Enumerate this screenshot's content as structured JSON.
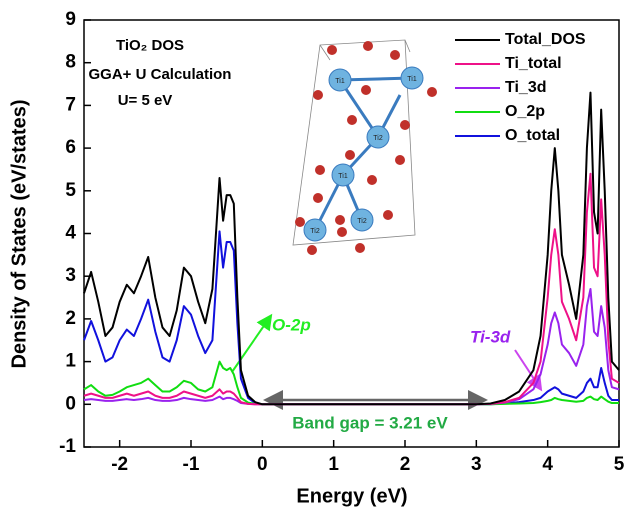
{
  "chart_data": {
    "type": "line",
    "xlabel": "Energy (eV)",
    "ylabel": "Density of States (eV/states)",
    "annotations": [
      "TiO₂ DOS",
      "GGA+ U Calculation",
      "U= 5 eV",
      "O-2p",
      "Ti-3d",
      "Band gap = 3.21 eV"
    ],
    "structure_labels": [
      "Ti1",
      "Ti1",
      "Ti1",
      "Ti2",
      "Ti2",
      "Ti2"
    ],
    "xlim": [
      -2.5,
      5
    ],
    "xticks": [
      -2,
      -1,
      0,
      1,
      2,
      3,
      4,
      5
    ],
    "ylim": [
      -1,
      9
    ],
    "yticks": [
      -1,
      0,
      1,
      2,
      3,
      4,
      5,
      6,
      7,
      8,
      9
    ],
    "legend": "upper right",
    "x": [
      -2.5,
      -2.4,
      -2.3,
      -2.2,
      -2.1,
      -2.0,
      -1.9,
      -1.8,
      -1.7,
      -1.6,
      -1.5,
      -1.4,
      -1.3,
      -1.2,
      -1.1,
      -1.0,
      -0.9,
      -0.8,
      -0.7,
      -0.6,
      -0.55,
      -0.5,
      -0.45,
      -0.4,
      -0.35,
      -0.3,
      -0.2,
      -0.1,
      0,
      1,
      2,
      3,
      3.2,
      3.4,
      3.6,
      3.8,
      3.9,
      4.0,
      4.05,
      4.1,
      4.15,
      4.2,
      4.3,
      4.4,
      4.5,
      4.55,
      4.6,
      4.65,
      4.7,
      4.75,
      4.8,
      4.85,
      4.9,
      5.0
    ],
    "series": [
      {
        "name": "Total_DOS",
        "color": "#000000",
        "values": [
          2.6,
          3.1,
          2.4,
          1.6,
          1.8,
          2.4,
          2.8,
          2.6,
          3.0,
          3.45,
          2.5,
          1.8,
          1.6,
          2.2,
          3.2,
          3.0,
          2.4,
          1.9,
          2.7,
          5.3,
          4.3,
          4.9,
          4.9,
          4.7,
          2.5,
          0.8,
          0.2,
          0.05,
          0,
          0,
          0,
          0,
          0.02,
          0.1,
          0.3,
          0.8,
          1.6,
          3.5,
          5.0,
          6.0,
          5.0,
          3.5,
          2.8,
          2.0,
          3.5,
          6.0,
          7.3,
          4.5,
          4.0,
          6.9,
          5.0,
          2.5,
          1.0,
          0.8
        ]
      },
      {
        "name": "Ti_total",
        "color": "#ee1188",
        "values": [
          0.2,
          0.25,
          0.2,
          0.15,
          0.15,
          0.2,
          0.25,
          0.2,
          0.25,
          0.3,
          0.2,
          0.15,
          0.15,
          0.2,
          0.3,
          0.25,
          0.2,
          0.15,
          0.2,
          0.35,
          0.25,
          0.3,
          0.3,
          0.25,
          0.15,
          0.05,
          0.01,
          0,
          0,
          0,
          0,
          0,
          0.01,
          0.05,
          0.15,
          0.5,
          1.0,
          2.5,
          3.5,
          4.1,
          3.5,
          2.4,
          2.0,
          1.5,
          2.5,
          4.5,
          5.4,
          3.2,
          3.0,
          4.8,
          3.5,
          1.5,
          0.6,
          0.5
        ]
      },
      {
        "name": "Ti_3d",
        "color": "#9922ee",
        "values": [
          0.1,
          0.12,
          0.1,
          0.08,
          0.08,
          0.1,
          0.12,
          0.1,
          0.12,
          0.15,
          0.1,
          0.08,
          0.08,
          0.1,
          0.15,
          0.12,
          0.1,
          0.08,
          0.1,
          0.18,
          0.12,
          0.15,
          0.15,
          0.12,
          0.08,
          0.03,
          0.01,
          0,
          0,
          0,
          0,
          0,
          0.01,
          0.04,
          0.12,
          0.35,
          0.7,
          1.4,
          1.9,
          2.15,
          1.9,
          1.4,
          1.2,
          0.9,
          1.4,
          2.3,
          2.7,
          1.7,
          1.6,
          2.3,
          1.8,
          0.8,
          0.4,
          0.35
        ]
      },
      {
        "name": "O_2p",
        "color": "#11dd11",
        "values": [
          0.35,
          0.45,
          0.3,
          0.2,
          0.22,
          0.3,
          0.4,
          0.45,
          0.5,
          0.6,
          0.45,
          0.3,
          0.3,
          0.4,
          0.55,
          0.5,
          0.35,
          0.3,
          0.4,
          1.0,
          0.85,
          0.8,
          0.85,
          0.7,
          0.4,
          0.15,
          0.04,
          0.01,
          0,
          0,
          0,
          0,
          0,
          0.01,
          0.02,
          0.03,
          0.05,
          0.08,
          0.1,
          0.15,
          0.12,
          0.1,
          0.08,
          0.06,
          0.08,
          0.15,
          0.18,
          0.12,
          0.1,
          0.18,
          0.12,
          0.06,
          0.03,
          0.03
        ]
      },
      {
        "name": "O_total",
        "color": "#1111dd",
        "values": [
          1.5,
          1.95,
          1.5,
          1.0,
          1.1,
          1.5,
          1.75,
          1.6,
          2.0,
          2.45,
          1.7,
          1.1,
          1.0,
          1.5,
          2.3,
          2.1,
          1.6,
          1.2,
          1.5,
          4.05,
          3.2,
          3.8,
          3.8,
          3.6,
          1.9,
          0.6,
          0.15,
          0.03,
          0,
          0,
          0,
          0,
          0,
          0.02,
          0.05,
          0.1,
          0.15,
          0.3,
          0.35,
          0.4,
          0.35,
          0.25,
          0.2,
          0.15,
          0.3,
          0.5,
          0.6,
          0.4,
          0.4,
          0.85,
          0.5,
          0.2,
          0.1,
          0.1
        ]
      }
    ]
  }
}
